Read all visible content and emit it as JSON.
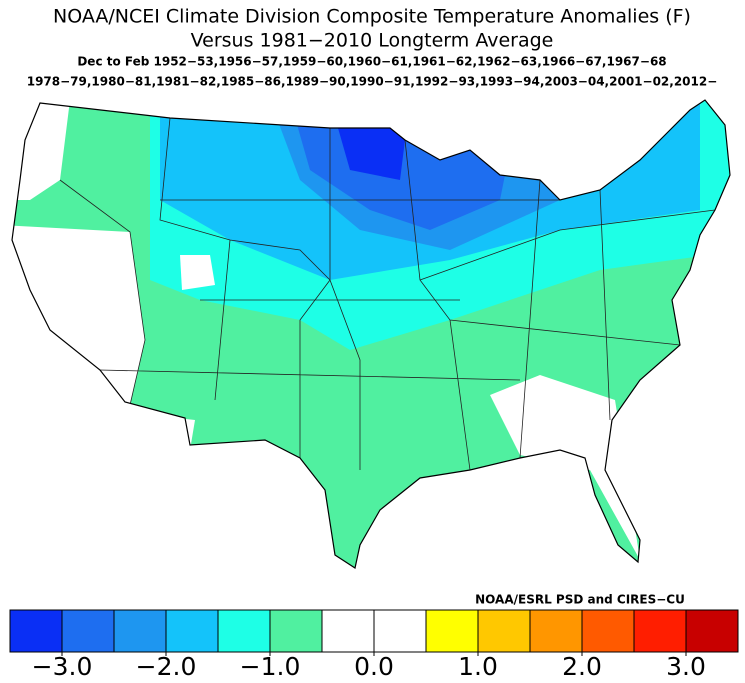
{
  "map": {
    "title": "NOAA/NCEI Climate Division Composite Temperature Anomalies (F)",
    "subtitle": "Versus 1981−2010 Longterm Average",
    "period": "Dec to Feb  1952−53,1956−57,1959−60,1960−61,1961−62,1962−63,1966−67,1967−68",
    "years": "1978−79,1980−81,1981−82,1985−86,1989−90,1990−91,1992−93,1993−94,2003−04,2001−02,2012−",
    "credit": "NOAA/ESRL PSD and CIRES−CU",
    "colorbar": {
      "xlim": [
        -3.5,
        3.5
      ],
      "colors": [
        "#0a2ff5",
        "#1e6ef0",
        "#1e96f0",
        "#14c3fa",
        "#1effe6",
        "#50f0a0",
        "#ffffff",
        "#ffffff",
        "#ffff00",
        "#ffc800",
        "#ff9600",
        "#ff5a00",
        "#ff1e00",
        "#c80000"
      ],
      "xticks": [
        {
          "value": -3,
          "label": "−3.0"
        },
        {
          "value": -2,
          "label": "−2.0"
        },
        {
          "value": -1,
          "label": "−1.0"
        },
        {
          "value": 0,
          "label": "0.0"
        },
        {
          "value": 1,
          "label": "1.0"
        },
        {
          "value": 2,
          "label": "2.0"
        },
        {
          "value": 3,
          "label": "3.0"
        }
      ]
    }
  }
}
